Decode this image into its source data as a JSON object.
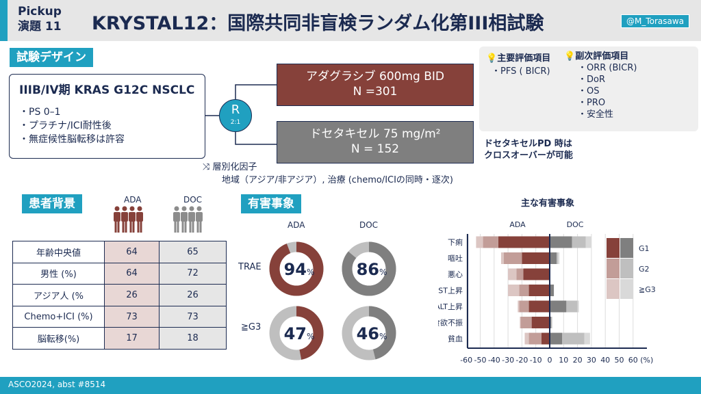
{
  "header": {
    "pickup": "Pickup",
    "topic": "演題 11",
    "title": "KRYSTAL12：国際共同非盲検ランダム化第III相試験",
    "handle": "@M_Torasawa"
  },
  "design": {
    "section": "試験デザイン",
    "population": "IIIB/IV期 KRAS G12C NSCLC",
    "criteria": [
      "・PS 0–1",
      "・プラチナ/ICI耐性後",
      "・無症候性脳転移は許容"
    ],
    "rand": "R",
    "ratio": "2:1",
    "arm1": {
      "line1": "アダグラシブ 600mg BID",
      "line2": "N =301",
      "color": "#86413a"
    },
    "arm2": {
      "line1": "ドセタキセル 75 mg/m²",
      "line2": "N = 152",
      "color": "#7f7f7f"
    },
    "strat_title": "層別化因子",
    "strat_text": "地域（アジア/非アジア）, 治療 (chemo/ICIの同時・逐次)",
    "crossover": [
      "ドセタキセルPD 時は",
      "クロスオーバーが可能"
    ]
  },
  "endpoints": {
    "primary_title": "主要評価項目",
    "primary": [
      "・PFS ( BICR)"
    ],
    "secondary_title": "副次評価項目",
    "secondary": [
      "・ORR (BICR)",
      "・DoR",
      "・OS",
      "・PRO",
      "・安全性"
    ]
  },
  "baseline": {
    "section": "患者背景",
    "col_ada": "ADA",
    "col_doc": "DOC",
    "rows": [
      [
        "年齢中央値",
        "64",
        "65"
      ],
      [
        "男性 (%)",
        "64",
        "72"
      ],
      [
        "アジア人 (%",
        "26",
        "26"
      ],
      [
        "Chemo+ICI (%)",
        "73",
        "73"
      ],
      [
        "脳転移(%)",
        "17",
        "18"
      ]
    ]
  },
  "ae": {
    "section": "有害事象",
    "col_ada": "ADA",
    "col_doc": "DOC",
    "row_trae": "TRAE",
    "row_g3": "≧G3",
    "trae_ada": "94",
    "trae_doc": "86",
    "g3_ada": "47",
    "g3_doc": "46",
    "pct": "%",
    "trae_ada_v": 94,
    "trae_doc_v": 86,
    "g3_ada_v": 47,
    "g3_doc_v": 46
  },
  "chart_data": {
    "type": "bar",
    "title": "主な有害事象",
    "left_label": "ADA",
    "right_label": "DOC",
    "unit": "(%)",
    "categories": [
      "下痢",
      "嘔吐",
      "悪心",
      "AST上昇",
      "ALT上昇",
      "食欲不振",
      "貧血"
    ],
    "xlim": [
      -60,
      60
    ],
    "ticks": [
      -60,
      -50,
      -40,
      -30,
      -20,
      -10,
      0,
      10,
      20,
      30,
      40,
      50,
      60
    ],
    "legend": [
      "G1",
      "G2",
      "≧G3"
    ],
    "series": [
      {
        "name": "ADA",
        "grades": [
          [
            37,
            11,
            5
          ],
          [
            20,
            13,
            2
          ],
          [
            19,
            5,
            6
          ],
          [
            15,
            7,
            8
          ],
          [
            15,
            7,
            1
          ],
          [
            13,
            8,
            0.5
          ],
          [
            6,
            9,
            3
          ]
        ]
      },
      {
        "name": "DOC",
        "grades": [
          [
            16,
            10,
            4
          ],
          [
            5,
            1,
            1
          ],
          [
            0,
            0,
            0
          ],
          [
            3,
            0,
            0
          ],
          [
            12,
            8,
            1
          ],
          [
            1,
            0.5,
            0.5
          ],
          [
            9,
            16,
            4
          ]
        ]
      }
    ],
    "colors": {
      "ADA": [
        "#86413a",
        "#c29d98",
        "#dcc6c3"
      ],
      "DOC": [
        "#7f7f7f",
        "#bfbfbf",
        "#d9d9d9"
      ]
    }
  },
  "footer": "ASCO2024, abst #8514"
}
